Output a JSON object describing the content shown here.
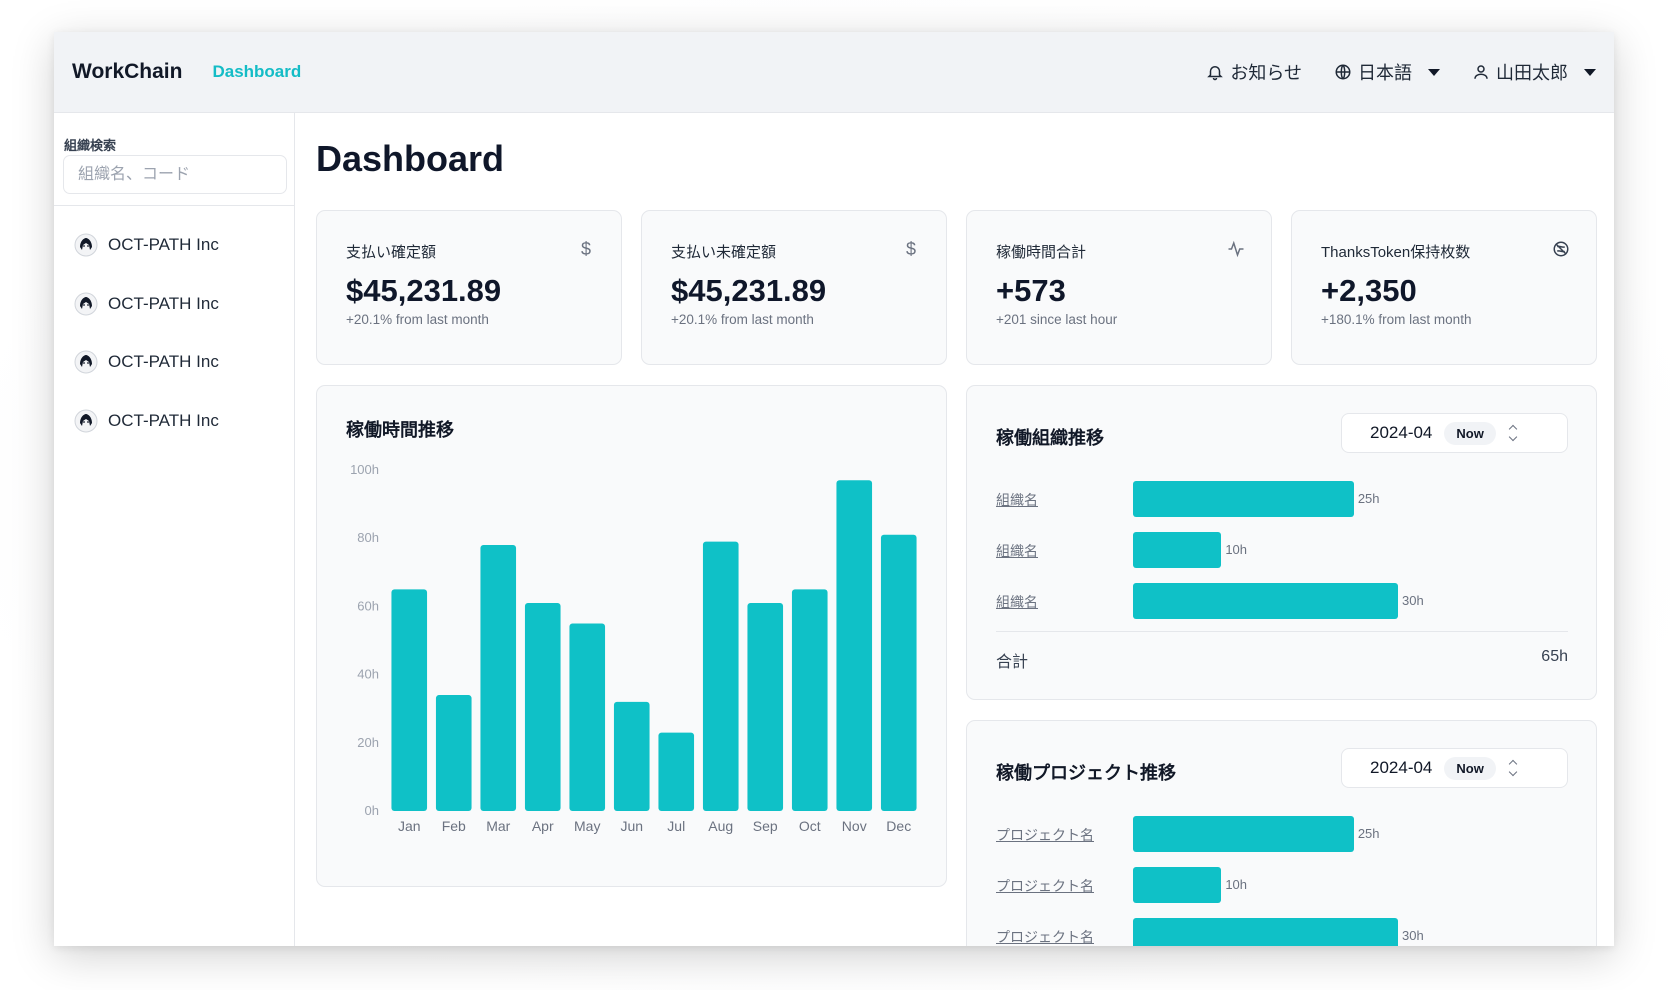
{
  "header": {
    "brand": "WorkChain",
    "nav_link": "Dashboard",
    "notifications": "お知らせ",
    "language": "日本語",
    "user": "山田太郎"
  },
  "sidebar": {
    "search_label": "組織検索",
    "search_placeholder": "組織名、コード",
    "orgs": [
      {
        "label": "OCT-PATH Inc"
      },
      {
        "label": "OCT-PATH Inc"
      },
      {
        "label": "OCT-PATH Inc"
      },
      {
        "label": "OCT-PATH Inc"
      }
    ]
  },
  "main": {
    "title": "Dashboard",
    "stats": [
      {
        "title": "支払い確定額",
        "value": "$45,231.89",
        "sub": "+20.1% from last month",
        "icon": "dollar-icon"
      },
      {
        "title": "支払い未確定額",
        "value": "$45,231.89",
        "sub": "+20.1% from last month",
        "icon": "dollar-icon"
      },
      {
        "title": "稼働時間合計",
        "value": "+573",
        "sub": "+201 since last hour",
        "icon": "activity-icon"
      },
      {
        "title": "ThanksToken保持枚数",
        "value": "+2,350",
        "sub": "+180.1% from last month",
        "icon": "token-icon"
      }
    ],
    "hours_chart": {
      "title": "稼働時間推移"
    },
    "org_panel": {
      "title": "稼働組織推移",
      "month": "2024-04",
      "badge": "Now",
      "rows": [
        {
          "label": "組織名",
          "value": 25,
          "display": "25h"
        },
        {
          "label": "組織名",
          "value": 10,
          "display": "10h"
        },
        {
          "label": "組織名",
          "value": 30,
          "display": "30h"
        }
      ],
      "total_label": "合計",
      "total_value": "65h"
    },
    "project_panel": {
      "title": "稼働プロジェクト推移",
      "month": "2024-04",
      "badge": "Now",
      "rows": [
        {
          "label": "プロジェクト名",
          "value": 25,
          "display": "25h"
        },
        {
          "label": "プロジェクト名",
          "value": 10,
          "display": "10h"
        },
        {
          "label": "プロジェクト名",
          "value": 30,
          "display": "30h"
        }
      ]
    }
  },
  "colors": {
    "accent": "#14bcc6",
    "bar": "#0fc1c7"
  },
  "chart_data": {
    "type": "bar",
    "title": "稼働時間推移",
    "categories": [
      "Jan",
      "Feb",
      "Mar",
      "Apr",
      "May",
      "Jun",
      "Jul",
      "Aug",
      "Sep",
      "Oct",
      "Nov",
      "Dec"
    ],
    "values": [
      65,
      34,
      78,
      61,
      55,
      32,
      23,
      79,
      61,
      65,
      97,
      81
    ],
    "y_ticks": [
      "0h",
      "20h",
      "40h",
      "60h",
      "80h",
      "100h"
    ],
    "ylim": [
      0,
      100
    ],
    "xlabel": "",
    "ylabel": "",
    "grid": false
  }
}
